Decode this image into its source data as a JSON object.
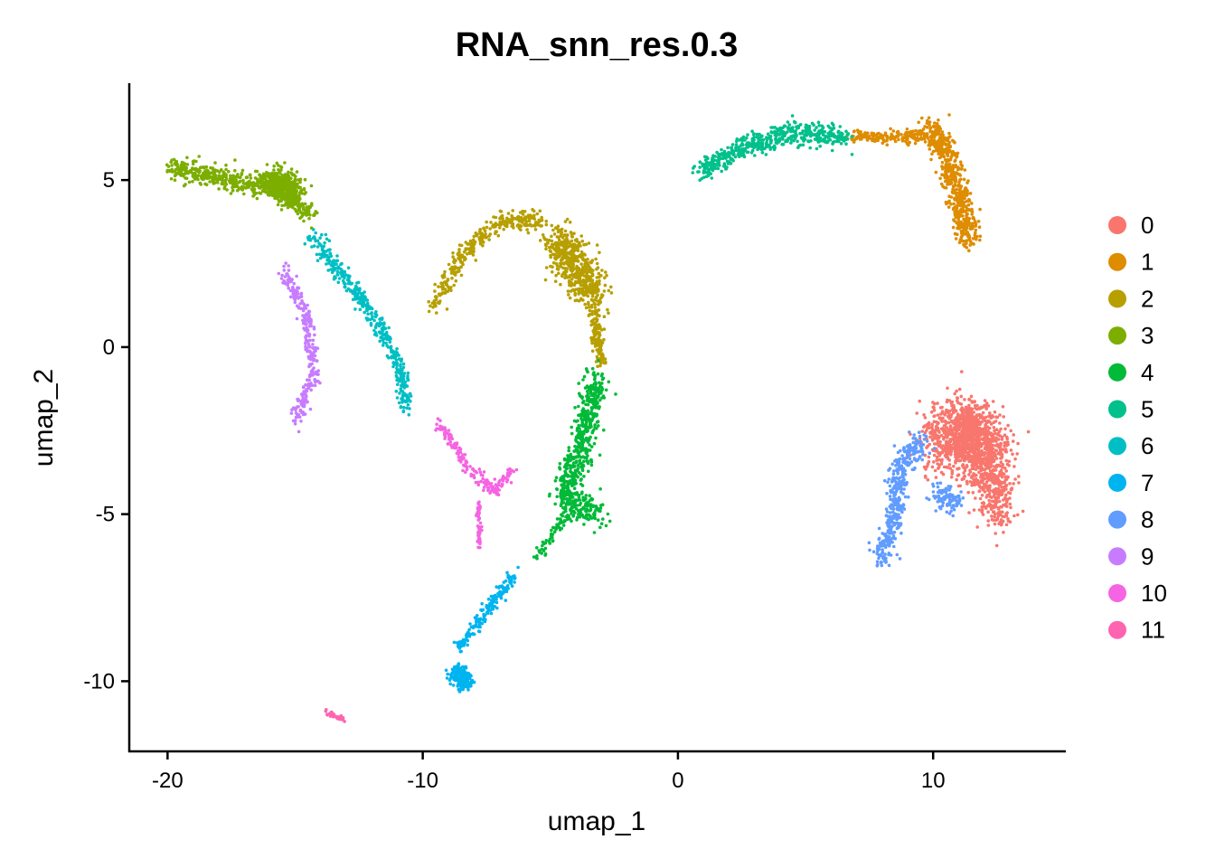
{
  "chart_data": {
    "type": "scatter",
    "title": "RNA_snn_res.0.3",
    "xlabel": "umap_1",
    "ylabel": "umap_2",
    "xlim": [
      -21.5,
      15.2
    ],
    "ylim": [
      -12.1,
      7.9
    ],
    "xticks": [
      -20,
      -10,
      0,
      10
    ],
    "yticks": [
      5,
      0,
      -5,
      -10
    ],
    "grid": false,
    "legend_position": "right",
    "series": [
      {
        "name": "0",
        "color": "#F8766D",
        "clusters": [
          {
            "n": 900,
            "path": [
              [
                10.3,
                -2.8
              ],
              [
                11.6,
                -2.6
              ],
              [
                12.2,
                -3.4
              ]
            ],
            "spread": 1.0
          },
          {
            "n": 600,
            "path": [
              [
                11.2,
                -2.0
              ],
              [
                12.4,
                -4.2
              ],
              [
                12.6,
                -5.0
              ]
            ],
            "spread": 0.7
          }
        ]
      },
      {
        "name": "1",
        "color": "#DE8C00",
        "clusters": [
          {
            "n": 160,
            "path": [
              [
                6.8,
                6.3
              ],
              [
                8.8,
                6.3
              ],
              [
                9.8,
                6.4
              ]
            ],
            "spread": 0.18
          },
          {
            "n": 550,
            "path": [
              [
                9.8,
                6.6
              ],
              [
                10.5,
                5.8
              ],
              [
                11.0,
                4.6
              ],
              [
                11.4,
                3.2
              ]
            ],
            "spread": 0.4
          }
        ]
      },
      {
        "name": "2",
        "color": "#B79F00",
        "clusters": [
          {
            "n": 320,
            "path": [
              [
                -9.6,
                1.2
              ],
              [
                -8.4,
                2.8
              ],
              [
                -6.8,
                3.8
              ],
              [
                -5.2,
                3.8
              ]
            ],
            "spread": 0.25
          },
          {
            "n": 550,
            "path": [
              [
                -4.8,
                3.2
              ],
              [
                -4.0,
                2.5
              ],
              [
                -3.2,
                1.5
              ]
            ],
            "spread": 0.6
          },
          {
            "n": 120,
            "path": [
              [
                -3.3,
                1.0
              ],
              [
                -3.0,
                -0.5
              ]
            ],
            "spread": 0.2
          }
        ]
      },
      {
        "name": "3",
        "color": "#7CAE00",
        "clusters": [
          {
            "n": 500,
            "path": [
              [
                -19.8,
                5.4
              ],
              [
                -17.6,
                5.0
              ],
              [
                -15.8,
                4.8
              ],
              [
                -14.4,
                4.0
              ]
            ],
            "spread": 0.3
          },
          {
            "n": 350,
            "path": [
              [
                -16.0,
                5.0
              ],
              [
                -15.0,
                4.6
              ]
            ],
            "spread": 0.45
          }
        ]
      },
      {
        "name": "4",
        "color": "#00BA38",
        "clusters": [
          {
            "n": 650,
            "path": [
              [
                -3.2,
                -1.0
              ],
              [
                -3.8,
                -3.0
              ],
              [
                -4.5,
                -4.5
              ],
              [
                -3.2,
                -5.0
              ]
            ],
            "spread": 0.45
          },
          {
            "n": 60,
            "path": [
              [
                -4.4,
                -5.0
              ],
              [
                -5.5,
                -6.3
              ]
            ],
            "spread": 0.15
          }
        ]
      },
      {
        "name": "5",
        "color": "#00C08B",
        "clusters": [
          {
            "n": 520,
            "path": [
              [
                0.8,
                5.2
              ],
              [
                2.5,
                6.0
              ],
              [
                4.5,
                6.4
              ],
              [
                6.6,
                6.3
              ]
            ],
            "spread": 0.3
          }
        ]
      },
      {
        "name": "6",
        "color": "#00BFC4",
        "clusters": [
          {
            "n": 430,
            "path": [
              [
                -14.3,
                3.3
              ],
              [
                -13.2,
                2.2
              ],
              [
                -11.8,
                0.8
              ],
              [
                -10.8,
                -0.8
              ],
              [
                -10.6,
                -1.8
              ]
            ],
            "spread": 0.25
          }
        ]
      },
      {
        "name": "7",
        "color": "#00B4F0",
        "clusters": [
          {
            "n": 170,
            "path": [
              [
                -6.4,
                -6.8
              ],
              [
                -7.4,
                -7.8
              ],
              [
                -8.6,
                -9.0
              ]
            ],
            "spread": 0.18
          },
          {
            "n": 230,
            "path": [
              [
                -8.7,
                -9.8
              ],
              [
                -8.3,
                -10.0
              ]
            ],
            "spread": 0.3
          }
        ]
      },
      {
        "name": "8",
        "color": "#619CFF",
        "clusters": [
          {
            "n": 380,
            "path": [
              [
                9.5,
                -2.8
              ],
              [
                8.6,
                -3.8
              ],
              [
                8.6,
                -4.8
              ],
              [
                8.2,
                -5.8
              ],
              [
                7.9,
                -6.4
              ]
            ],
            "spread": 0.35
          },
          {
            "n": 100,
            "path": [
              [
                10.0,
                -4.4
              ],
              [
                11.0,
                -4.6
              ]
            ],
            "spread": 0.35
          }
        ]
      },
      {
        "name": "9",
        "color": "#C77CFF",
        "clusters": [
          {
            "n": 280,
            "path": [
              [
                -15.4,
                2.2
              ],
              [
                -14.5,
                0.8
              ],
              [
                -14.3,
                -0.8
              ],
              [
                -15.0,
                -2.3
              ]
            ],
            "spread": 0.22
          }
        ]
      },
      {
        "name": "10",
        "color": "#F564E3",
        "clusters": [
          {
            "n": 170,
            "path": [
              [
                -9.4,
                -2.3
              ],
              [
                -8.2,
                -3.6
              ],
              [
                -7.2,
                -4.3
              ],
              [
                -6.4,
                -3.6
              ]
            ],
            "spread": 0.18
          },
          {
            "n": 50,
            "path": [
              [
                -7.8,
                -4.6
              ],
              [
                -7.8,
                -6.0
              ]
            ],
            "spread": 0.07
          }
        ]
      },
      {
        "name": "11",
        "color": "#FF64B0",
        "clusters": [
          {
            "n": 40,
            "path": [
              [
                -13.8,
                -10.95
              ],
              [
                -13.1,
                -11.15
              ]
            ],
            "spread": 0.08
          }
        ]
      }
    ]
  }
}
